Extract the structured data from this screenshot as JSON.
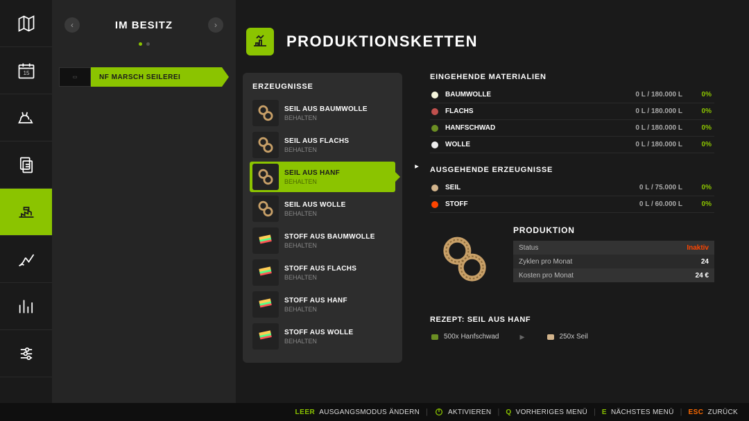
{
  "accent": "#8bc400",
  "bg": "#1a1a1a",
  "sidebar": {
    "items": [
      {
        "name": "map"
      },
      {
        "name": "calendar"
      },
      {
        "name": "animals"
      },
      {
        "name": "contracts"
      },
      {
        "name": "production",
        "active": true
      },
      {
        "name": "finance"
      },
      {
        "name": "statistics"
      },
      {
        "name": "settings"
      }
    ]
  },
  "owned": {
    "title": "IM BESITZ",
    "prev": "‹",
    "next": "›",
    "dots": 2,
    "activeDot": 0,
    "facility": {
      "label": "NF MARSCH SEILEREI"
    }
  },
  "page": {
    "title": "PRODUKTIONSKETTEN"
  },
  "products": {
    "title": "ERZEUGNISSE",
    "list": [
      {
        "name": "SEIL AUS BAUMWOLLE",
        "sub": "BEHALTEN",
        "type": "rope"
      },
      {
        "name": "SEIL AUS FLACHS",
        "sub": "BEHALTEN",
        "type": "rope"
      },
      {
        "name": "SEIL AUS HANF",
        "sub": "BEHALTEN",
        "type": "rope",
        "selected": true
      },
      {
        "name": "SEIL AUS WOLLE",
        "sub": "BEHALTEN",
        "type": "rope"
      },
      {
        "name": "STOFF AUS BAUMWOLLE",
        "sub": "BEHALTEN",
        "type": "fabric"
      },
      {
        "name": "STOFF AUS FLACHS",
        "sub": "BEHALTEN",
        "type": "fabric"
      },
      {
        "name": "STOFF AUS HANF",
        "sub": "BEHALTEN",
        "type": "fabric"
      },
      {
        "name": "STOFF AUS WOLLE",
        "sub": "BEHALTEN",
        "type": "fabric"
      }
    ]
  },
  "incoming": {
    "title": "EINGEHENDE MATERIALIEN",
    "list": [
      {
        "name": "BAUMWOLLE",
        "amount": "0 L / 180.000 L",
        "pct": "0%",
        "color": "#f5f5dc"
      },
      {
        "name": "FLACHS",
        "amount": "0 L / 180.000 L",
        "pct": "0%",
        "color": "#c0504d"
      },
      {
        "name": "HANFSCHWAD",
        "amount": "0 L / 180.000 L",
        "pct": "0%",
        "color": "#6b8e23"
      },
      {
        "name": "WOLLE",
        "amount": "0 L / 180.000 L",
        "pct": "0%",
        "color": "#eeeeee"
      }
    ]
  },
  "outgoing": {
    "title": "AUSGEHENDE ERZEUGNISSE",
    "list": [
      {
        "name": "SEIL",
        "amount": "0 L / 75.000 L",
        "pct": "0%",
        "color": "#d2b48c"
      },
      {
        "name": "STOFF",
        "amount": "0 L / 60.000 L",
        "pct": "0%",
        "color": "#ff4500"
      }
    ]
  },
  "production": {
    "title": "PRODUKTION",
    "rows": [
      {
        "key": "Status",
        "val": "Inaktiv",
        "style": "inactive"
      },
      {
        "key": "Zyklen pro Monat",
        "val": "24"
      },
      {
        "key": "Kosten pro Monat",
        "val": "24 €"
      }
    ]
  },
  "recipe": {
    "title": "REZEPT: SEIL AUS HANF",
    "input": {
      "text": "500x Hanfschwad",
      "color": "#6b8e23"
    },
    "output": {
      "text": "250x Seil",
      "color": "#d2b48c"
    }
  },
  "footer": {
    "items": [
      {
        "key": "",
        "label": "AUSGANGSMODUS ÄNDERN",
        "blankKey": true,
        "prefix": "LEER"
      },
      {
        "key": "",
        "label": "AKTIVIEREN",
        "icon": true
      },
      {
        "key": "Q",
        "label": "VORHERIGES MENÜ"
      },
      {
        "key": "E",
        "label": "NÄCHSTES MENÜ"
      },
      {
        "key": "ESC",
        "label": "ZURÜCK",
        "esc": true
      }
    ]
  }
}
